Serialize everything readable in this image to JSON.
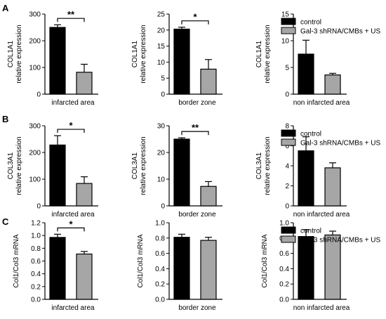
{
  "panel_letters": [
    "A",
    "B",
    "C"
  ],
  "colors": {
    "control": "#000000",
    "treated": "#a6a6a6",
    "axis": "#000000"
  },
  "legend": {
    "labels": [
      "control",
      "Gal-3 shRNA/CMBs + US"
    ]
  },
  "chart_data": [
    {
      "type": "bar",
      "panel": "A",
      "title": "",
      "ylabel": [
        "COL1A1",
        "relative expression"
      ],
      "xlabel": "infarcted area",
      "categories": [
        "control",
        "Gal-3 shRNA/CMBs + US"
      ],
      "values": [
        250,
        82
      ],
      "errors": [
        10,
        30
      ],
      "ylim": [
        0,
        300
      ],
      "yticks": [
        "0",
        "100",
        "200",
        "300"
      ],
      "significance": "**",
      "legend": false
    },
    {
      "type": "bar",
      "panel": "A",
      "title": "",
      "ylabel": [
        "COL1A1",
        "relative expression"
      ],
      "xlabel": "border zone",
      "categories": [
        "control",
        "Gal-3 shRNA/CMBs + US"
      ],
      "values": [
        20.3,
        7.8
      ],
      "errors": [
        0.6,
        3.0
      ],
      "ylim": [
        0,
        25
      ],
      "yticks": [
        "0",
        "5",
        "10",
        "15",
        "20",
        "25"
      ],
      "significance": "*",
      "legend": false
    },
    {
      "type": "bar",
      "panel": "A",
      "title": "",
      "ylabel": [
        "COL1A1",
        "relative expression"
      ],
      "xlabel": "non infarcted area",
      "categories": [
        "control",
        "Gal-3 shRNA/CMBs + US"
      ],
      "values": [
        7.5,
        3.6
      ],
      "errors": [
        2.6,
        0.3
      ],
      "ylim": [
        0,
        15
      ],
      "yticks": [
        "0",
        "5",
        "10",
        "15"
      ],
      "significance": "",
      "legend": true
    },
    {
      "type": "bar",
      "panel": "B",
      "title": "",
      "ylabel": [
        "COL3A1",
        "relative expression"
      ],
      "xlabel": "infarcted area",
      "categories": [
        "control",
        "Gal-3 shRNA/CMBs + US"
      ],
      "values": [
        228,
        84
      ],
      "errors": [
        35,
        25
      ],
      "ylim": [
        0,
        300
      ],
      "yticks": [
        "0",
        "100",
        "200",
        "300"
      ],
      "significance": "*",
      "legend": false
    },
    {
      "type": "bar",
      "panel": "B",
      "title": "",
      "ylabel": [
        "COL3A1",
        "relative expression"
      ],
      "xlabel": "border zone",
      "categories": [
        "control",
        "Gal-3 shRNA/CMBs + US"
      ],
      "values": [
        25,
        7.3
      ],
      "errors": [
        0.5,
        1.8
      ],
      "ylim": [
        0,
        30
      ],
      "yticks": [
        "0",
        "10",
        "20",
        "30"
      ],
      "significance": "**",
      "legend": false
    },
    {
      "type": "bar",
      "panel": "B",
      "title": "",
      "ylabel": [
        "COL3A1",
        "relative expression"
      ],
      "xlabel": "non infarcted area",
      "categories": [
        "control",
        "Gal-3 shRNA/CMBs + US"
      ],
      "values": [
        5.5,
        3.8
      ],
      "errors": [
        1.4,
        0.5
      ],
      "ylim": [
        0,
        8
      ],
      "yticks": [
        "0",
        "2",
        "4",
        "6",
        "8"
      ],
      "significance": "",
      "legend": true
    },
    {
      "type": "bar",
      "panel": "C",
      "title": "",
      "ylabel": [
        "Col1/Col3 mRNA"
      ],
      "xlabel": "infarcted area",
      "categories": [
        "control",
        "Gal-3 shRNA/CMBs + US"
      ],
      "values": [
        0.97,
        0.71
      ],
      "errors": [
        0.05,
        0.04
      ],
      "ylim": [
        0,
        1.2
      ],
      "yticks": [
        "0.0",
        "0.2",
        "0.4",
        "0.6",
        "0.8",
        "1.0",
        "1.2"
      ],
      "significance": "*",
      "legend": false
    },
    {
      "type": "bar",
      "panel": "C",
      "title": "",
      "ylabel": [
        "Col1/Col3 mRNA"
      ],
      "xlabel": "border zone",
      "categories": [
        "control",
        "Gal-3 shRNA/CMBs + US"
      ],
      "values": [
        0.81,
        0.77
      ],
      "errors": [
        0.04,
        0.04
      ],
      "ylim": [
        0,
        1.0
      ],
      "yticks": [
        "0.0",
        "0.2",
        "0.4",
        "0.6",
        "0.8",
        "1.0"
      ],
      "significance": "",
      "legend": false
    },
    {
      "type": "bar",
      "panel": "C",
      "title": "",
      "ylabel": [
        "Col1/Col3 mRNA"
      ],
      "xlabel": "non infarcted area",
      "categories": [
        "control",
        "Gal-3 shRNA/CMBs + US"
      ],
      "values": [
        0.82,
        0.84
      ],
      "errors": [
        0.09,
        0.05
      ],
      "ylim": [
        0,
        1.0
      ],
      "yticks": [
        "0.0",
        "0.2",
        "0.4",
        "0.6",
        "0.8",
        "1.0"
      ],
      "significance": "",
      "legend": true
    }
  ]
}
